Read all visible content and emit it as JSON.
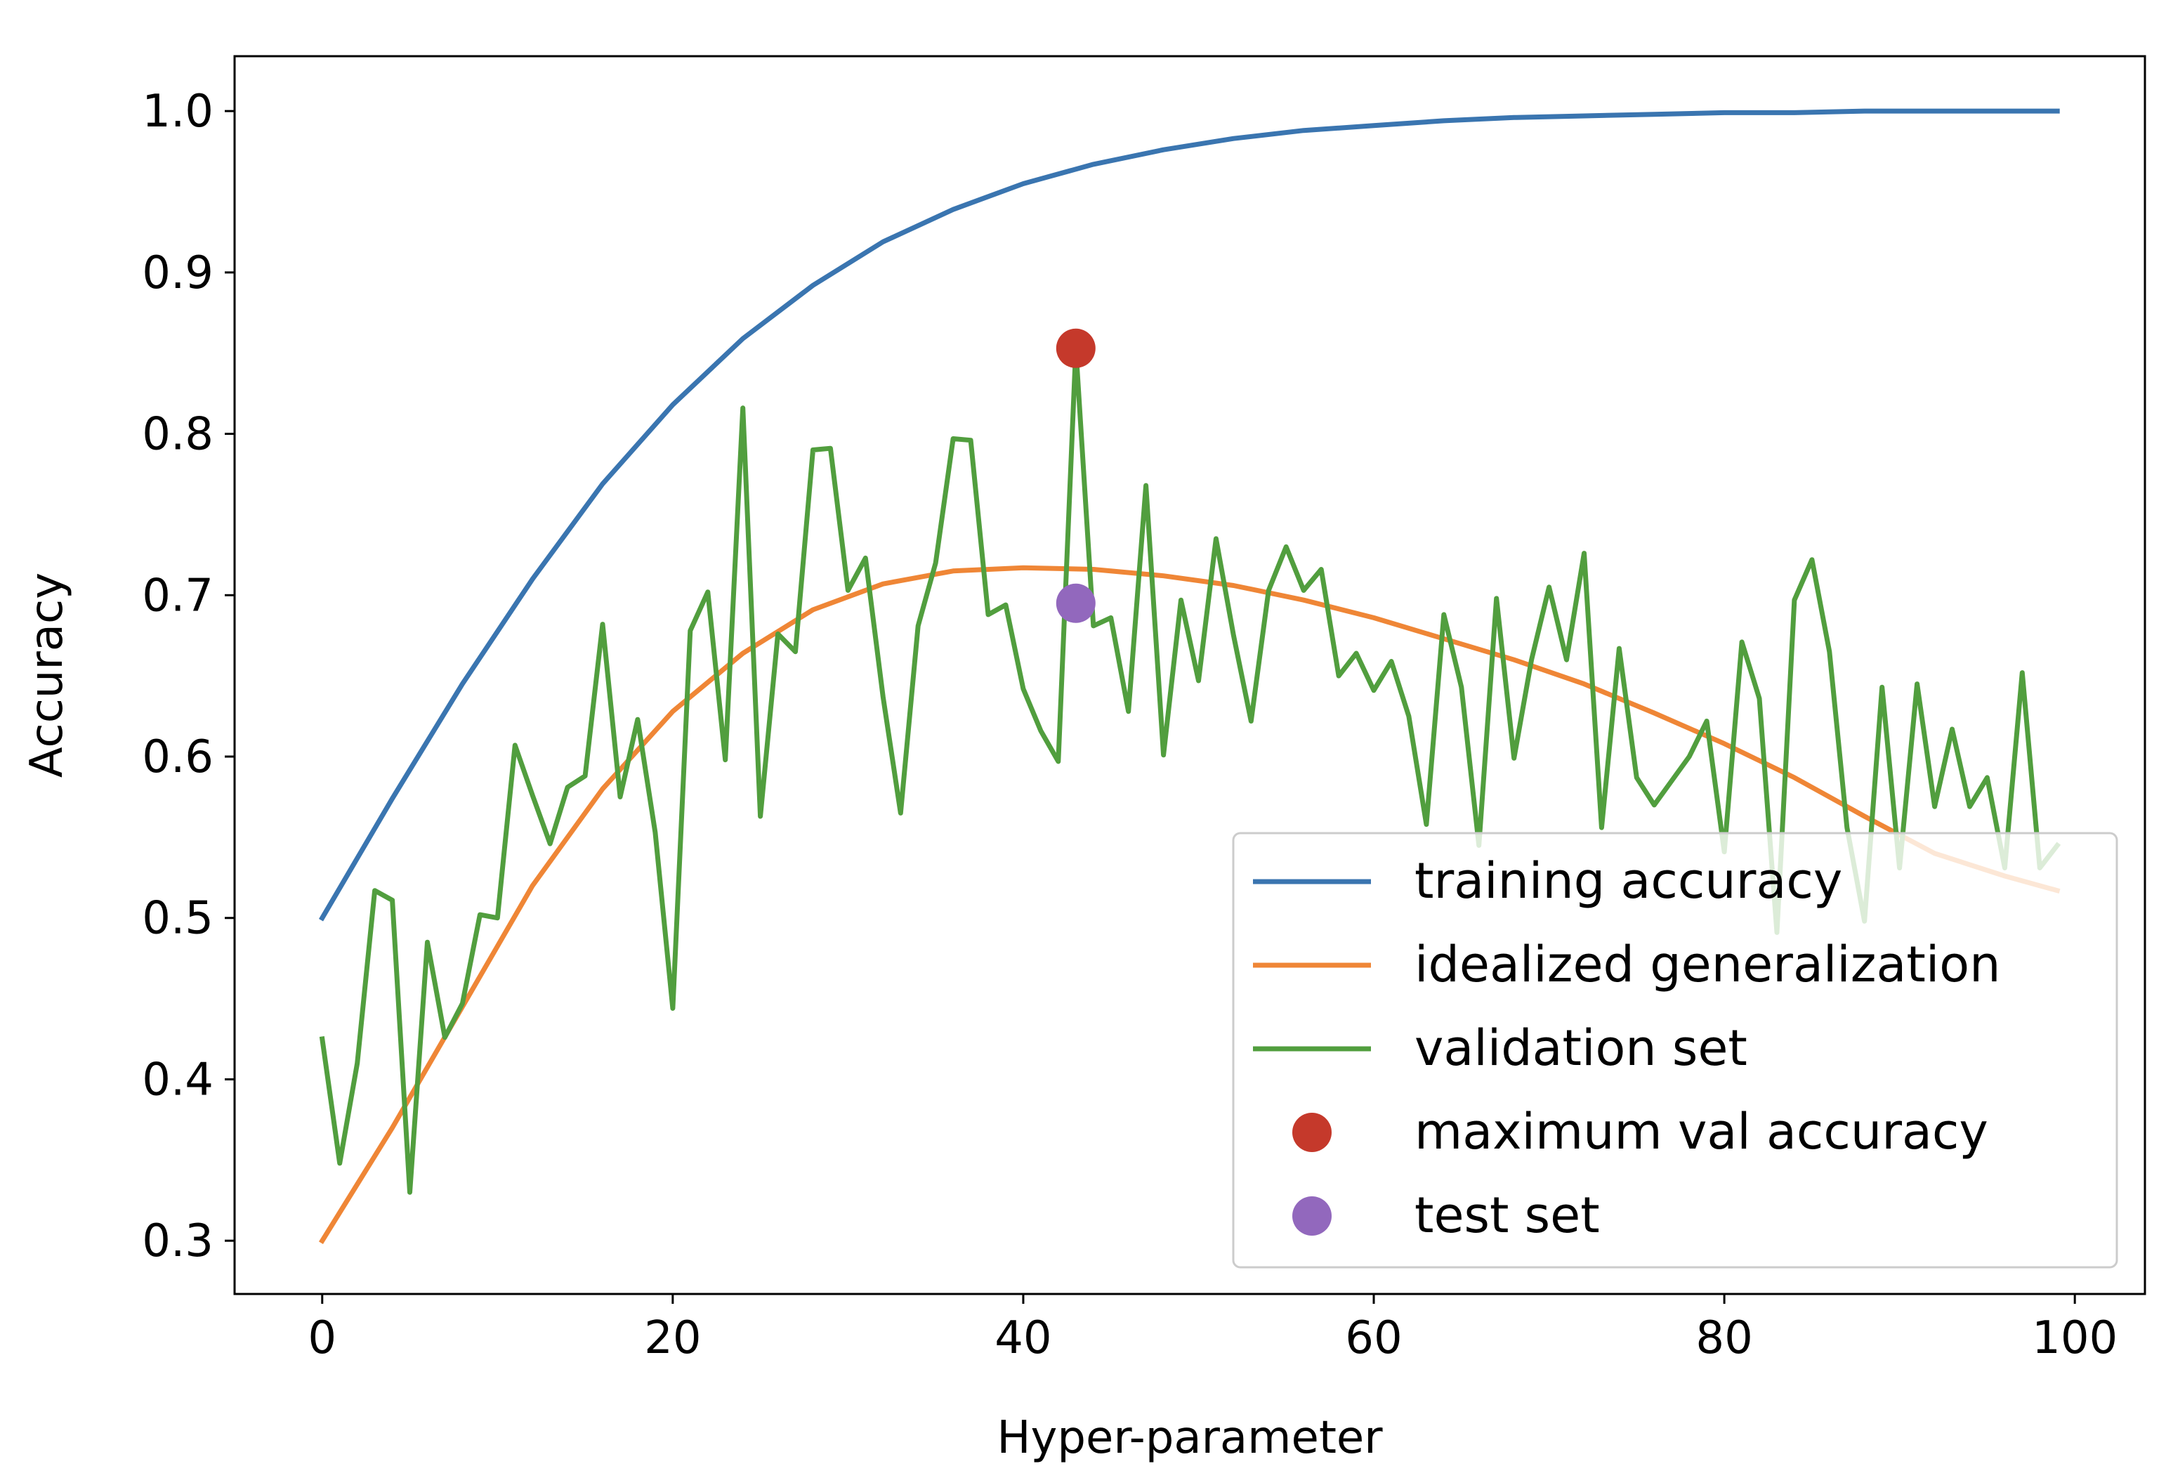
{
  "chart_data": {
    "type": "line",
    "title": "",
    "xlabel": "Hyper-parameter",
    "ylabel": "Accuracy",
    "xlim": [
      -5,
      104
    ],
    "ylim": [
      0.267,
      1.034
    ],
    "xticks": [
      0,
      20,
      40,
      60,
      80,
      100
    ],
    "xtick_labels": [
      "0",
      "20",
      "40",
      "60",
      "80",
      "100"
    ],
    "yticks": [
      0.3,
      0.4,
      0.5,
      0.6,
      0.7,
      0.8,
      0.9,
      1.0
    ],
    "ytick_labels": [
      "0.3",
      "0.4",
      "0.5",
      "0.6",
      "0.7",
      "0.8",
      "0.9",
      "1.0"
    ],
    "grid": false,
    "legend_position": "lower-right",
    "series": [
      {
        "name": "training accuracy",
        "kind": "line",
        "color": "#3a75b0",
        "x": [
          0,
          4,
          8,
          12,
          16,
          20,
          24,
          28,
          32,
          36,
          40,
          44,
          48,
          52,
          56,
          60,
          64,
          68,
          72,
          76,
          80,
          84,
          88,
          92,
          96,
          99
        ],
        "values": [
          0.5,
          0.574,
          0.645,
          0.71,
          0.769,
          0.818,
          0.859,
          0.892,
          0.919,
          0.939,
          0.955,
          0.967,
          0.976,
          0.983,
          0.988,
          0.991,
          0.994,
          0.996,
          0.997,
          0.998,
          0.999,
          0.999,
          1.0,
          1.0,
          1.0,
          1.0
        ]
      },
      {
        "name": "idealized generalization",
        "kind": "line",
        "color": "#ef8636",
        "x": [
          0,
          4,
          8,
          12,
          16,
          20,
          24,
          28,
          32,
          36,
          40,
          44,
          48,
          52,
          56,
          60,
          64,
          68,
          72,
          76,
          80,
          84,
          88,
          92,
          96,
          99
        ],
        "values": [
          0.3,
          0.37,
          0.445,
          0.52,
          0.58,
          0.628,
          0.664,
          0.691,
          0.707,
          0.715,
          0.717,
          0.716,
          0.712,
          0.706,
          0.697,
          0.686,
          0.673,
          0.66,
          0.645,
          0.627,
          0.608,
          0.587,
          0.563,
          0.54,
          0.526,
          0.517
        ]
      },
      {
        "name": "validation set",
        "kind": "line",
        "color": "#519e3e",
        "x": [
          0,
          1,
          2,
          3,
          4,
          5,
          6,
          7,
          8,
          9,
          10,
          11,
          12,
          13,
          14,
          15,
          16,
          17,
          18,
          19,
          20,
          21,
          22,
          23,
          24,
          25,
          26,
          27,
          28,
          29,
          30,
          31,
          32,
          33,
          34,
          35,
          36,
          37,
          38,
          39,
          40,
          41,
          42,
          43,
          44,
          45,
          46,
          47,
          48,
          49,
          50,
          51,
          52,
          53,
          54,
          55,
          56,
          57,
          58,
          59,
          60,
          61,
          62,
          63,
          64,
          65,
          66,
          67,
          68,
          69,
          70,
          71,
          72,
          73,
          74,
          75,
          76,
          77,
          78,
          79,
          80,
          81,
          82,
          83,
          84,
          85,
          86,
          87,
          88,
          89,
          90,
          91,
          92,
          93,
          94,
          95,
          96,
          97,
          98,
          99
        ],
        "values": [
          0.425,
          0.348,
          0.41,
          0.517,
          0.511,
          0.33,
          0.485,
          0.426,
          0.447,
          0.502,
          0.5,
          0.607,
          0.576,
          0.546,
          0.581,
          0.588,
          0.682,
          0.575,
          0.623,
          0.553,
          0.444,
          0.678,
          0.702,
          0.598,
          0.816,
          0.563,
          0.676,
          0.665,
          0.79,
          0.791,
          0.703,
          0.723,
          0.637,
          0.565,
          0.681,
          0.72,
          0.797,
          0.796,
          0.688,
          0.694,
          0.642,
          0.616,
          0.597,
          0.853,
          0.681,
          0.686,
          0.628,
          0.768,
          0.601,
          0.697,
          0.647,
          0.735,
          0.675,
          0.622,
          0.703,
          0.73,
          0.703,
          0.716,
          0.65,
          0.664,
          0.641,
          0.659,
          0.625,
          0.558,
          0.688,
          0.643,
          0.545,
          0.698,
          0.599,
          0.66,
          0.705,
          0.66,
          0.726,
          0.556,
          0.667,
          0.587,
          0.57,
          0.585,
          0.6,
          0.622,
          0.541,
          0.671,
          0.636,
          0.491,
          0.697,
          0.722,
          0.665,
          0.556,
          0.498,
          0.643,
          0.531,
          0.645,
          0.569,
          0.617,
          0.569,
          0.587,
          0.531,
          0.652,
          0.531,
          0.545
        ]
      },
      {
        "name": "maximum val accuracy",
        "kind": "point",
        "color": "#c5392b",
        "x": [
          43
        ],
        "values": [
          0.853
        ]
      },
      {
        "name": "test set",
        "kind": "point",
        "color": "#9268bd",
        "x": [
          43
        ],
        "values": [
          0.695
        ]
      }
    ]
  }
}
